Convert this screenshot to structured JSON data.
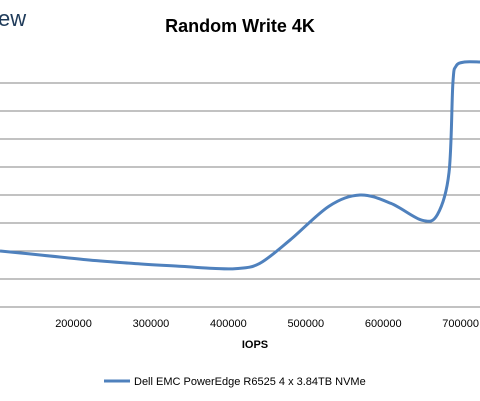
{
  "chart_data": {
    "type": "line",
    "title": "Random Write 4K",
    "xlabel": "IOPS",
    "ylabel": "",
    "watermark_fragment": "ew",
    "xlim": [
      105000,
      725000
    ],
    "ylim": [
      0,
      9
    ],
    "x_ticks": [
      200000,
      300000,
      400000,
      500000,
      600000,
      700000
    ],
    "x_tick_labels": [
      "200000",
      "300000",
      "400000",
      "500000",
      "600000",
      "700000"
    ],
    "y_grid": [
      1,
      2,
      3,
      4,
      5,
      6,
      7,
      8
    ],
    "grid": true,
    "legend_position": "bottom",
    "series": [
      {
        "name": "Dell EMC PowerEdge R6525 4 x 3.84TB NVMe",
        "color": "#4F81BD",
        "x": [
          105000,
          160000,
          220000,
          280000,
          340000,
          380000,
          410000,
          440000,
          480000,
          530000,
          570000,
          610000,
          650000,
          670000,
          685000,
          690000,
          694000,
          705000,
          725000
        ],
        "y": [
          2.0,
          1.85,
          1.68,
          1.55,
          1.45,
          1.38,
          1.37,
          1.55,
          2.4,
          3.6,
          4.0,
          3.7,
          3.1,
          3.3,
          4.8,
          8.0,
          8.6,
          8.75,
          8.75
        ]
      }
    ]
  }
}
